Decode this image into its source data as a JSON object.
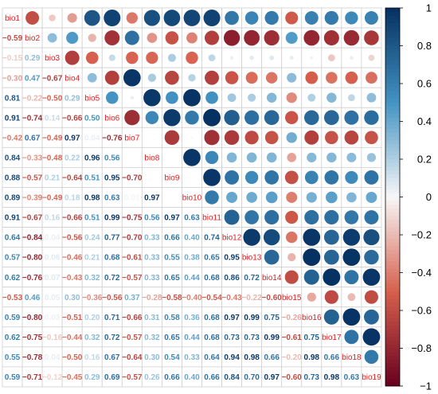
{
  "chart_data": {
    "type": "heatmap",
    "variables": [
      "bio1",
      "bio2",
      "bio3",
      "bio4",
      "bio5",
      "bio6",
      "bio7",
      "bio8",
      "bio9",
      "bio10",
      "bio11",
      "bio12",
      "bio13",
      "bio14",
      "bio15",
      "bio16",
      "bio17",
      "bio18",
      "bio19"
    ],
    "lower_triangle_style": "number",
    "upper_triangle_style": "circle",
    "diagonal": "variable name",
    "grid": true,
    "legend_position": "right",
    "colorbar": {
      "range": [
        -1,
        1
      ],
      "ticks": [
        "1",
        "0.8",
        "0.6",
        "0.4",
        "0.2",
        "0",
        "−0.2",
        "−0.4",
        "−0.6",
        "−0.8",
        "−1"
      ],
      "colors": {
        "neg1": "#67001F",
        "neg05": "#D6604D",
        "zero": "#F7F7F7",
        "pos05": "#4393C3",
        "pos1": "#053061"
      }
    },
    "lower_labels": [
      [],
      [
        "−0.59"
      ],
      [
        "−0.15",
        "0.29"
      ],
      [
        "−0.30",
        "0.47",
        "−0.67"
      ],
      [
        "0.81",
        "−0.22",
        "−0.50",
        "0.29"
      ],
      [
        "0.91",
        "−0.74",
        "0.14",
        "−0.66",
        "0.50"
      ],
      [
        "−0.42",
        "0.67",
        "−0.49",
        "0.97",
        "0.04",
        "−0.76"
      ],
      [
        "0.84",
        "−0.33",
        "−0.48",
        "0.22",
        "0.96",
        "0.56"
      ],
      [
        "0.88",
        "−0.57",
        "0.21",
        "−0.64",
        "0.51",
        "0.95",
        "−0.70"
      ],
      [
        "0.89",
        "−0.39",
        "−0.49",
        "0.18",
        "0.98",
        "0.63",
        "0.01",
        "0.97"
      ],
      [
        "0.91",
        "−0.67",
        "0.16",
        "−0.66",
        "0.51",
        "0.99",
        "−0.75",
        "0.56",
        "0.97",
        "0.63"
      ],
      [
        "0.64",
        "−0.84",
        "0.04",
        "−0.56",
        "0.24",
        "0.77",
        "−0.70",
        "0.33",
        "0.66",
        "0.40",
        "0.74"
      ],
      [
        "0.57",
        "−0.80",
        "0.06",
        "−0.46",
        "0.21",
        "0.68",
        "−0.61",
        "0.33",
        "0.55",
        "0.38",
        "0.65",
        "0.95"
      ],
      [
        "0.62",
        "−0.76",
        "0.07",
        "−0.43",
        "0.32",
        "0.72",
        "−0.57",
        "0.33",
        "0.65",
        "0.44",
        "0.68",
        "0.86",
        "0.72"
      ],
      [
        "−0.53",
        "0.46",
        "0.05",
        "0.30",
        "−0.36",
        "−0.56",
        "0.37",
        "−0.28",
        "−0.58",
        "−0.40",
        "−0.54",
        "−0.43",
        "−0.22",
        "−0.60"
      ],
      [
        "0.59",
        "−0.80",
        "0.03",
        "−0.51",
        "0.20",
        "0.71",
        "−0.66",
        "0.31",
        "0.58",
        "0.36",
        "0.68",
        "0.97",
        "0.99",
        "0.75",
        "−0.26"
      ],
      [
        "0.62",
        "−0.75",
        "−0.16",
        "−0.44",
        "0.32",
        "0.72",
        "−0.57",
        "0.32",
        "0.65",
        "0.44",
        "0.68",
        "0.73",
        "0.73",
        "0.99",
        "−0.61",
        "0.75"
      ],
      [
        "0.55",
        "−0.78",
        "0.04",
        "−0.50",
        "0.16",
        "0.67",
        "−0.64",
        "0.30",
        "0.54",
        "0.33",
        "0.64",
        "0.94",
        "0.98",
        "0.66",
        "−0.20",
        "0.98",
        "0.66"
      ],
      [
        "0.59",
        "−0.71",
        "−0.12",
        "−0.45",
        "0.29",
        "0.69",
        "−0.57",
        "0.26",
        "0.66",
        "0.40",
        "0.66",
        "0.84",
        "0.70",
        "0.97",
        "−0.60",
        "0.73",
        "0.98",
        "0.63"
      ]
    ]
  }
}
